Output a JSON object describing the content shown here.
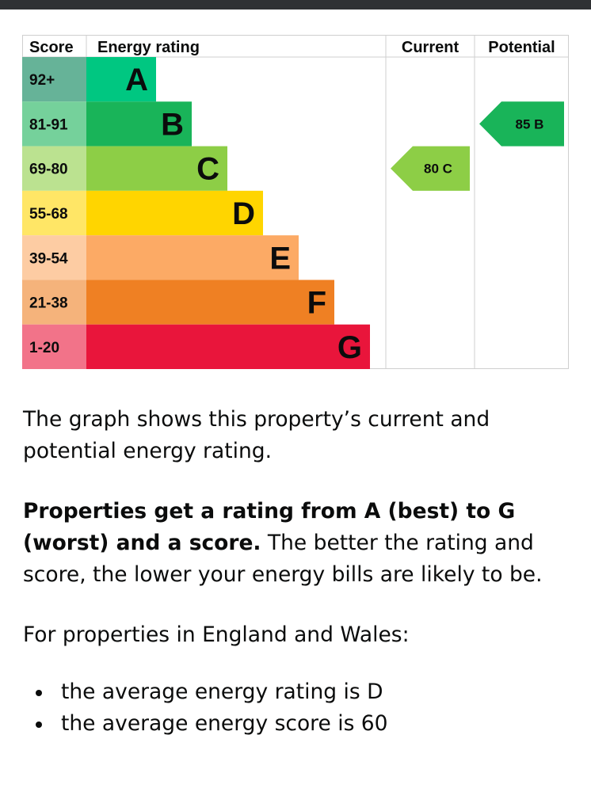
{
  "chart_data": {
    "type": "table",
    "headers": {
      "score": "Score",
      "rating": "Energy rating",
      "current": "Current",
      "potential": "Potential"
    },
    "bands": [
      {
        "score": "92+",
        "letter": "A",
        "color": "#008054",
        "score_bg": "#66b398",
        "bar": "#00c781"
      },
      {
        "score": "81-91",
        "letter": "B",
        "color": "#19b459",
        "score_bg": "#75d19b",
        "bar": "#19b459"
      },
      {
        "score": "69-80",
        "letter": "C",
        "color": "#8dce46",
        "score_bg": "#bbe290",
        "bar": "#8dce46"
      },
      {
        "score": "55-68",
        "letter": "D",
        "color": "#ffd500",
        "score_bg": "#ffe666",
        "bar": "#ffd500"
      },
      {
        "score": "39-54",
        "letter": "E",
        "color": "#fcaa65",
        "score_bg": "#fdcca3",
        "bar": "#fcaa65"
      },
      {
        "score": "21-38",
        "letter": "F",
        "color": "#ef8023",
        "score_bg": "#f5b37b",
        "bar": "#ef8023"
      },
      {
        "score": "1-20",
        "letter": "G",
        "color": "#e9153b",
        "score_bg": "#f27389",
        "bar": "#e9153b"
      }
    ],
    "current": {
      "value": 80,
      "rating": "C",
      "label": "80 C"
    },
    "potential": {
      "value": 85,
      "rating": "B",
      "label": "85 B"
    }
  },
  "text": {
    "intro": "The graph shows this property’s current and potential energy rating.",
    "rating_strong": "Properties get a rating from A (best) to G (worst) and a score.",
    "rating_rest": " The better the rating and score, the lower your energy bills are likely to be.",
    "average_intro": "For properties in England and Wales:",
    "average_items": [
      "the average energy rating is D",
      "the average energy score is 60"
    ]
  }
}
